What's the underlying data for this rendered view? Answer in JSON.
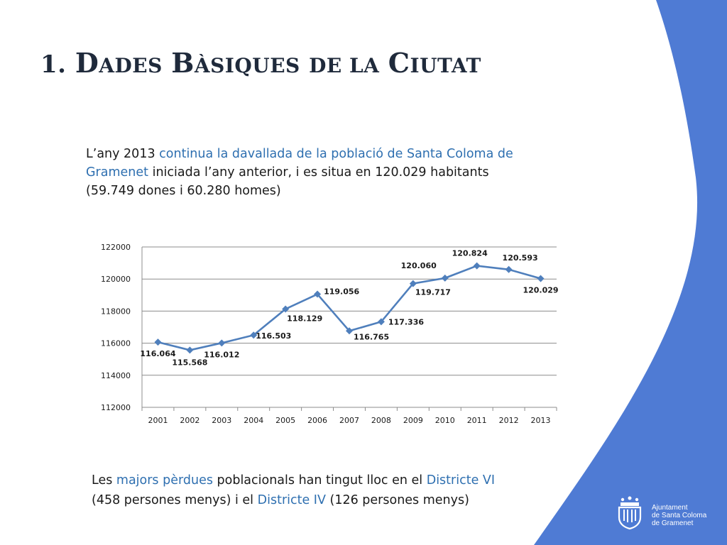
{
  "title": {
    "num": "1.",
    "w1_big": "D",
    "w1_rest": "ades",
    "w2_big": "B",
    "w2_rest": "àsiques",
    "w3": "de la",
    "w4_big": "C",
    "w4_rest": "iutat"
  },
  "intro": {
    "t1": "L’any 2013 ",
    "h1": "continua la davallada de la població de Santa Coloma de Gramenet",
    "t2": " iniciada l’any anterior, i es situa en 120.029 habitants (59.749 dones i 60.280 homes)"
  },
  "outro": {
    "t1": "Les ",
    "h1": "majors pèrdues",
    "t2": " poblacionals han tingut lloc en el ",
    "h2": "Districte VI",
    "t3": " (458 persones menys) i el ",
    "h3": "Districte IV",
    "t4": " (126 persones menys)"
  },
  "logo": {
    "line1": "Ajuntament",
    "line2": "de Santa Coloma",
    "line3": "de Gramenet"
  },
  "colors": {
    "accent": "#4f7bd4",
    "line": "#4f7fbc",
    "highlight": "#2e6fb0"
  },
  "chart_data": {
    "type": "line",
    "categories": [
      "2001",
      "2002",
      "2003",
      "2004",
      "2005",
      "2006",
      "2007",
      "2008",
      "2009",
      "2010",
      "2011",
      "2012",
      "2013"
    ],
    "values": [
      116064,
      115568,
      116012,
      116503,
      118129,
      119056,
      116765,
      117336,
      119717,
      120060,
      120824,
      120593,
      120029
    ],
    "data_labels": [
      "116.064",
      "115.568",
      "116.012",
      "116.503",
      "118.129",
      "119.056",
      "116.765",
      "117.336",
      "119.717",
      "120.060",
      "120.824",
      "120.593",
      "120.029"
    ],
    "y_ticks": [
      "112000",
      "114000",
      "116000",
      "118000",
      "120000",
      "122000"
    ],
    "ylim": [
      112000,
      122000
    ],
    "grid": true,
    "marker": "diamond"
  }
}
